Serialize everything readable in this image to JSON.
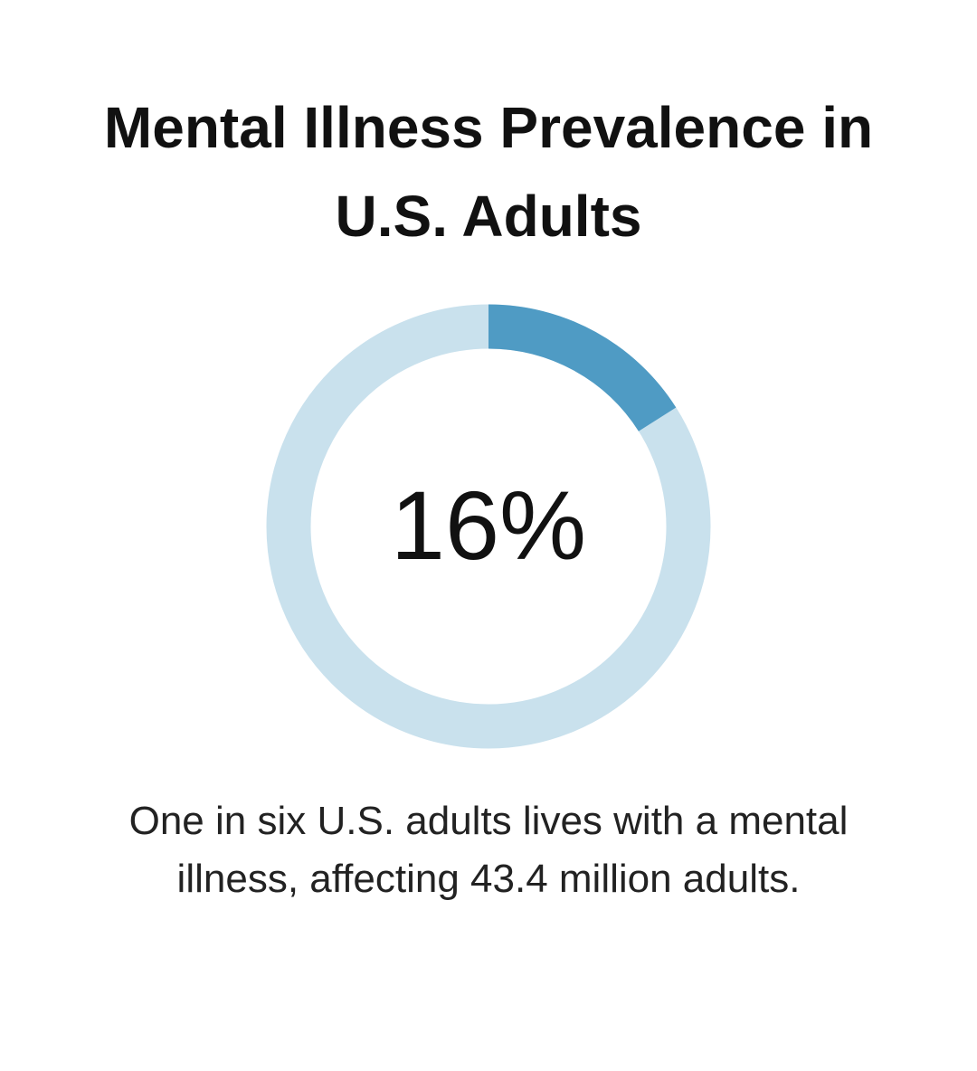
{
  "chart_data": {
    "type": "donut",
    "title": "Mental Illness Prevalence in U.S. Adults",
    "values": [
      16
    ],
    "value_labels": [
      "16%"
    ],
    "ylim": [
      0,
      100
    ],
    "color": "#4f9bc4",
    "track_color": "#c9e1ed",
    "description": "One in six U.S. adults lives with a mental illness, affecting 43.4 million adults."
  }
}
